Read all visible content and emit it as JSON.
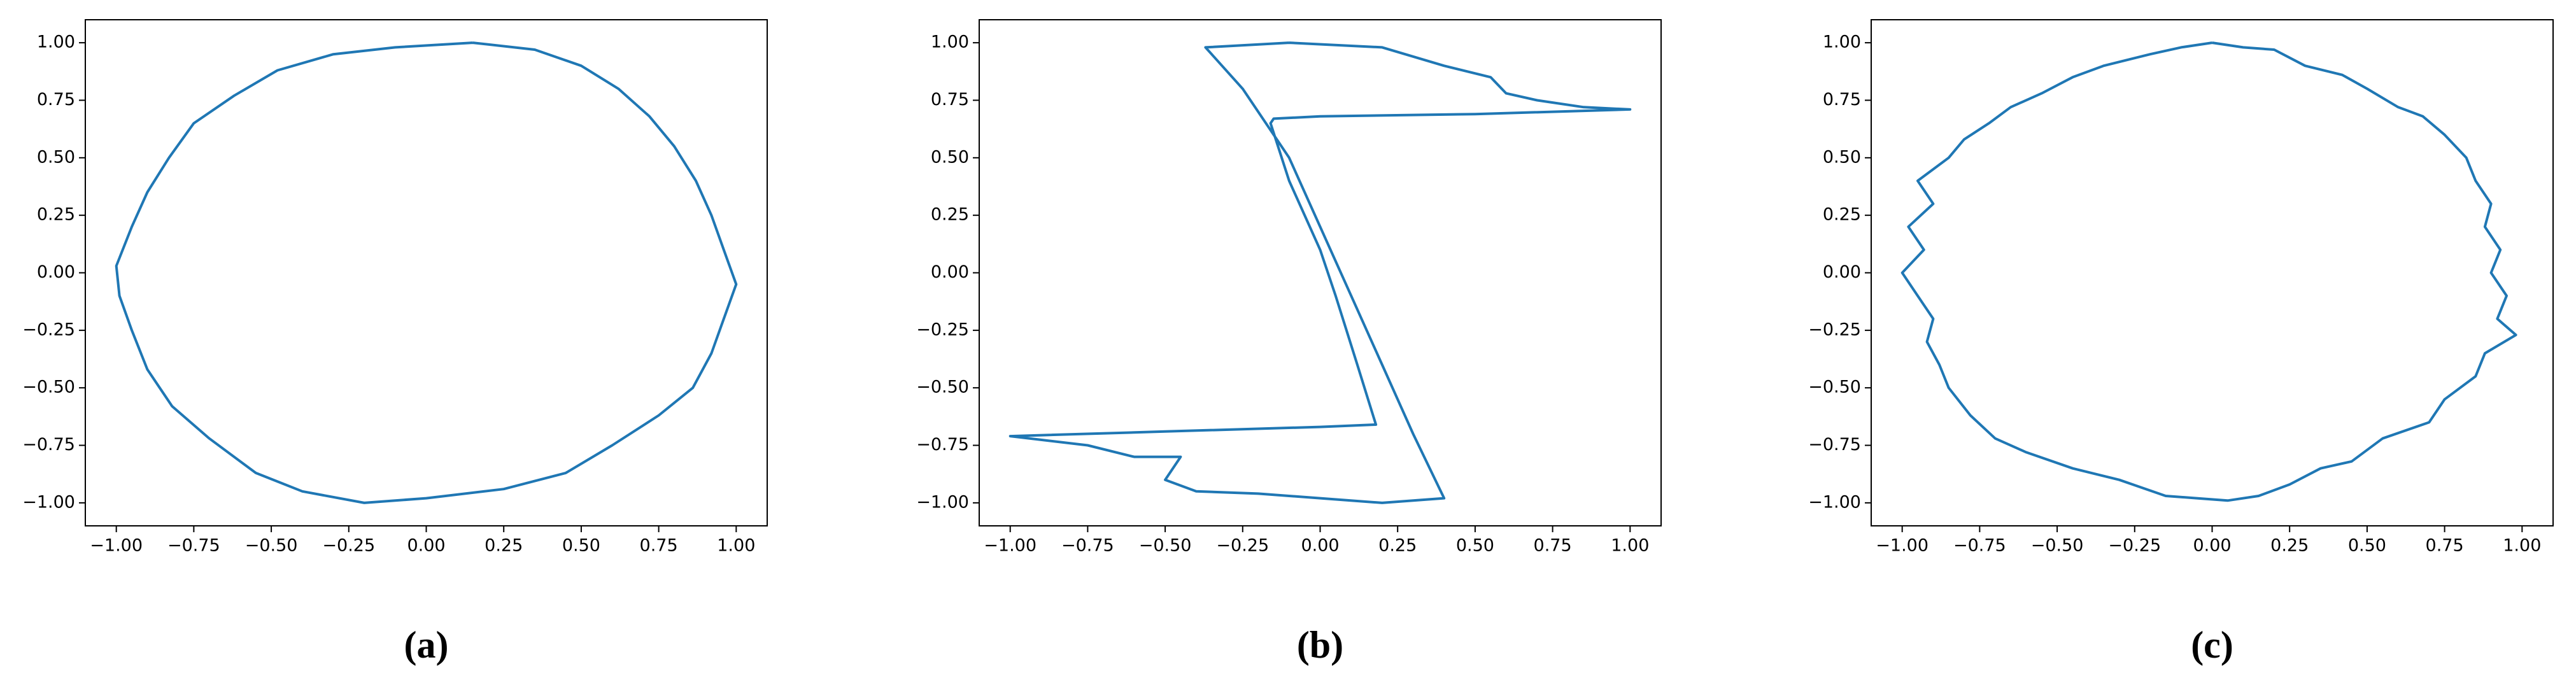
{
  "chart_data": [
    {
      "type": "line",
      "caption": "(a)",
      "color": "#1f77b4",
      "xlim": [
        -1.1,
        1.1
      ],
      "ylim": [
        -1.1,
        1.1
      ],
      "xticks": [
        {
          "value": -1,
          "label": "−1.00"
        },
        {
          "value": -0.75,
          "label": "−0.75"
        },
        {
          "value": -0.5,
          "label": "−0.50"
        },
        {
          "value": -0.25,
          "label": "−0.25"
        },
        {
          "value": 0,
          "label": "0.00"
        },
        0.25,
        {
          "value": 0.5,
          "label": "0.50"
        },
        0.75,
        {
          "value": 1,
          "label": "1.00"
        }
      ],
      "yticks": [
        {
          "value": -1,
          "label": "−1.00"
        },
        {
          "value": -0.75,
          "label": "−0.75"
        },
        {
          "value": -0.5,
          "label": "−0.50"
        },
        {
          "value": -0.25,
          "label": "−0.25"
        },
        {
          "value": 0,
          "label": "0.00"
        },
        0.25,
        {
          "value": 0.5,
          "label": "0.50"
        },
        0.75,
        {
          "value": 1,
          "label": "1.00"
        }
      ],
      "x": [
        0.15,
        0.35,
        0.5,
        0.62,
        0.72,
        0.8,
        0.87,
        0.92,
        0.96,
        1.0,
        0.96,
        0.92,
        0.86,
        0.75,
        0.6,
        0.45,
        0.25,
        0.0,
        -0.2,
        -0.4,
        -0.55,
        -0.7,
        -0.82,
        -0.9,
        -0.95,
        -0.99,
        -1.0,
        -0.95,
        -0.9,
        -0.83,
        -0.75,
        -0.62,
        -0.48,
        -0.3,
        -0.1,
        0.15
      ],
      "values": [
        1.0,
        0.97,
        0.9,
        0.8,
        0.68,
        0.55,
        0.4,
        0.25,
        0.1,
        -0.05,
        -0.2,
        -0.35,
        -0.5,
        -0.62,
        -0.75,
        -0.87,
        -0.94,
        -0.98,
        -1.0,
        -0.95,
        -0.87,
        -0.72,
        -0.58,
        -0.42,
        -0.25,
        -0.1,
        0.03,
        0.2,
        0.35,
        0.5,
        0.65,
        0.77,
        0.88,
        0.95,
        0.98,
        1.0
      ]
    },
    {
      "type": "line",
      "caption": "(b)",
      "color": "#1f77b4",
      "xlim": [
        -1.1,
        1.1
      ],
      "ylim": [
        -1.1,
        1.1
      ],
      "xticks": [
        {
          "value": -1,
          "label": "−1.00"
        },
        {
          "value": -0.75,
          "label": "−0.75"
        },
        {
          "value": -0.5,
          "label": "−0.50"
        },
        {
          "value": -0.25,
          "label": "−0.25"
        },
        {
          "value": 0,
          "label": "0.00"
        },
        0.25,
        {
          "value": 0.5,
          "label": "0.50"
        },
        0.75,
        {
          "value": 1,
          "label": "1.00"
        }
      ],
      "yticks": [
        {
          "value": -1,
          "label": "−1.00"
        },
        {
          "value": -0.75,
          "label": "−0.75"
        },
        {
          "value": -0.5,
          "label": "−0.50"
        },
        {
          "value": -0.25,
          "label": "−0.25"
        },
        {
          "value": 0,
          "label": "0.00"
        },
        0.25,
        {
          "value": 0.5,
          "label": "0.50"
        },
        0.75,
        {
          "value": 1,
          "label": "1.00"
        }
      ],
      "x": [
        -0.1,
        0.2,
        0.4,
        0.55,
        0.6,
        0.7,
        0.85,
        1.0,
        0.5,
        0.0,
        -0.15,
        -0.16,
        -0.1,
        0.0,
        0.05,
        0.12,
        0.18,
        0.0,
        -0.5,
        -1.0,
        -0.75,
        -0.6,
        -0.45,
        -0.5,
        -0.4,
        -0.2,
        0.0,
        0.2,
        0.4,
        0.3,
        0.2,
        0.1,
        0.0,
        -0.1,
        -0.25,
        -0.37,
        -0.1
      ],
      "values": [
        1.0,
        0.98,
        0.9,
        0.85,
        0.78,
        0.75,
        0.72,
        0.71,
        0.69,
        0.68,
        0.67,
        0.65,
        0.4,
        0.1,
        -0.1,
        -0.4,
        -0.66,
        -0.67,
        -0.69,
        -0.71,
        -0.75,
        -0.8,
        -0.8,
        -0.9,
        -0.95,
        -0.96,
        -0.98,
        -1.0,
        -0.98,
        -0.7,
        -0.4,
        -0.1,
        0.2,
        0.5,
        0.8,
        0.98,
        1.0
      ]
    },
    {
      "type": "line",
      "caption": "(c)",
      "color": "#1f77b4",
      "xlim": [
        -1.1,
        1.1
      ],
      "ylim": [
        -1.1,
        1.1
      ],
      "xticks": [
        {
          "value": -1,
          "label": "−1.00"
        },
        {
          "value": -0.75,
          "label": "−0.75"
        },
        {
          "value": -0.5,
          "label": "−0.50"
        },
        {
          "value": -0.25,
          "label": "−0.25"
        },
        {
          "value": 0,
          "label": "0.00"
        },
        0.25,
        {
          "value": 0.5,
          "label": "0.50"
        },
        0.75,
        {
          "value": 1,
          "label": "1.00"
        }
      ],
      "yticks": [
        {
          "value": -1,
          "label": "−1.00"
        },
        {
          "value": -0.75,
          "label": "−0.75"
        },
        {
          "value": -0.5,
          "label": "−0.50"
        },
        {
          "value": -0.25,
          "label": "−0.25"
        },
        {
          "value": 0,
          "label": "0.00"
        },
        0.25,
        {
          "value": 0.5,
          "label": "0.50"
        },
        0.75,
        {
          "value": 1,
          "label": "1.00"
        }
      ],
      "x": [
        0.0,
        0.1,
        0.2,
        0.3,
        0.42,
        0.5,
        0.6,
        0.68,
        0.75,
        0.82,
        0.85,
        0.9,
        0.88,
        0.93,
        0.9,
        0.95,
        0.92,
        0.98,
        0.88,
        0.85,
        0.75,
        0.7,
        0.55,
        0.45,
        0.35,
        0.25,
        0.15,
        0.05,
        -0.05,
        -0.15,
        -0.3,
        -0.45,
        -0.6,
        -0.7,
        -0.78,
        -0.85,
        -0.88,
        -0.92,
        -0.9,
        -0.95,
        -1.0,
        -0.93,
        -0.98,
        -0.9,
        -0.95,
        -0.85,
        -0.8,
        -0.72,
        -0.65,
        -0.55,
        -0.45,
        -0.35,
        -0.2,
        -0.1,
        0.0
      ],
      "values": [
        1.0,
        0.98,
        0.97,
        0.9,
        0.86,
        0.8,
        0.72,
        0.68,
        0.6,
        0.5,
        0.4,
        0.3,
        0.2,
        0.1,
        0.0,
        -0.1,
        -0.2,
        -0.27,
        -0.35,
        -0.45,
        -0.55,
        -0.65,
        -0.72,
        -0.82,
        -0.85,
        -0.92,
        -0.97,
        -0.99,
        -0.98,
        -0.97,
        -0.9,
        -0.85,
        -0.78,
        -0.72,
        -0.62,
        -0.5,
        -0.4,
        -0.3,
        -0.2,
        -0.1,
        0.0,
        0.1,
        0.2,
        0.3,
        0.4,
        0.5,
        0.58,
        0.65,
        0.72,
        0.78,
        0.85,
        0.9,
        0.95,
        0.98,
        1.0
      ]
    }
  ]
}
